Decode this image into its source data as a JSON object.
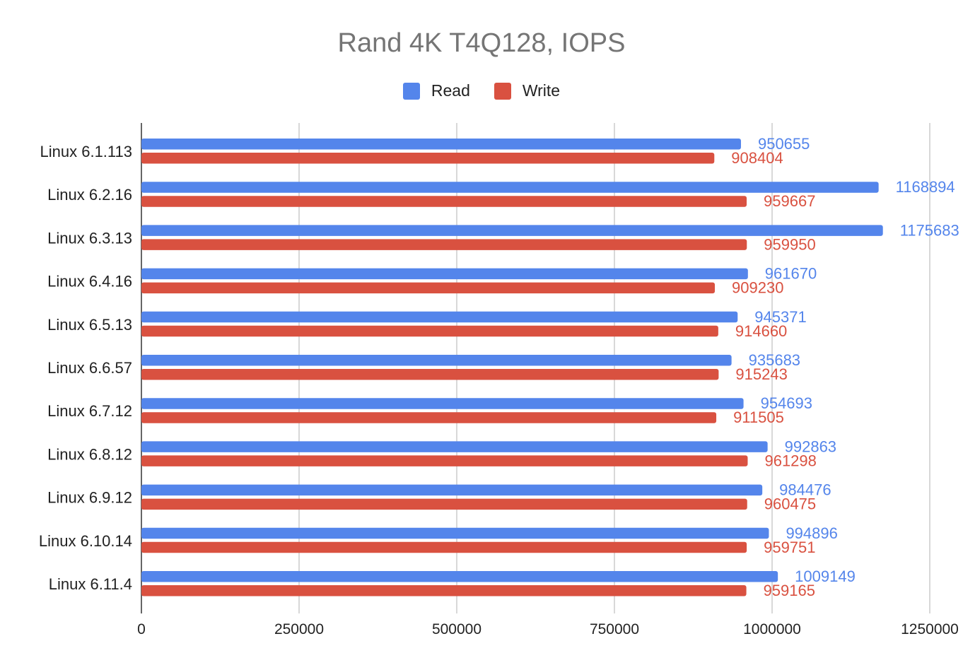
{
  "chart_data": {
    "type": "bar",
    "orientation": "horizontal",
    "title": "Rand 4K T4Q128, IOPS",
    "xlabel": "",
    "ylabel": "",
    "xlim": [
      0,
      1250000
    ],
    "x_ticks": [
      "0",
      "250000",
      "500000",
      "750000",
      "1000000",
      "1250000"
    ],
    "grid": true,
    "legend_position": "top",
    "categories": [
      "Linux 6.1.113",
      "Linux 6.2.16",
      "Linux 6.3.13",
      "Linux 6.4.16",
      "Linux 6.5.13",
      "Linux 6.6.57",
      "Linux 6.7.12",
      "Linux 6.8.12",
      "Linux 6.9.12",
      "Linux 6.10.14",
      "Linux 6.11.4"
    ],
    "series": [
      {
        "name": "Read",
        "color": "#5485eb",
        "values": [
          950655,
          1168894,
          1175683,
          961670,
          945371,
          935683,
          954693,
          992863,
          984476,
          994896,
          1009149
        ]
      },
      {
        "name": "Write",
        "color": "#d95140",
        "values": [
          908404,
          959667,
          959950,
          909230,
          914660,
          915243,
          911505,
          961298,
          960475,
          959751,
          959165
        ]
      }
    ]
  }
}
